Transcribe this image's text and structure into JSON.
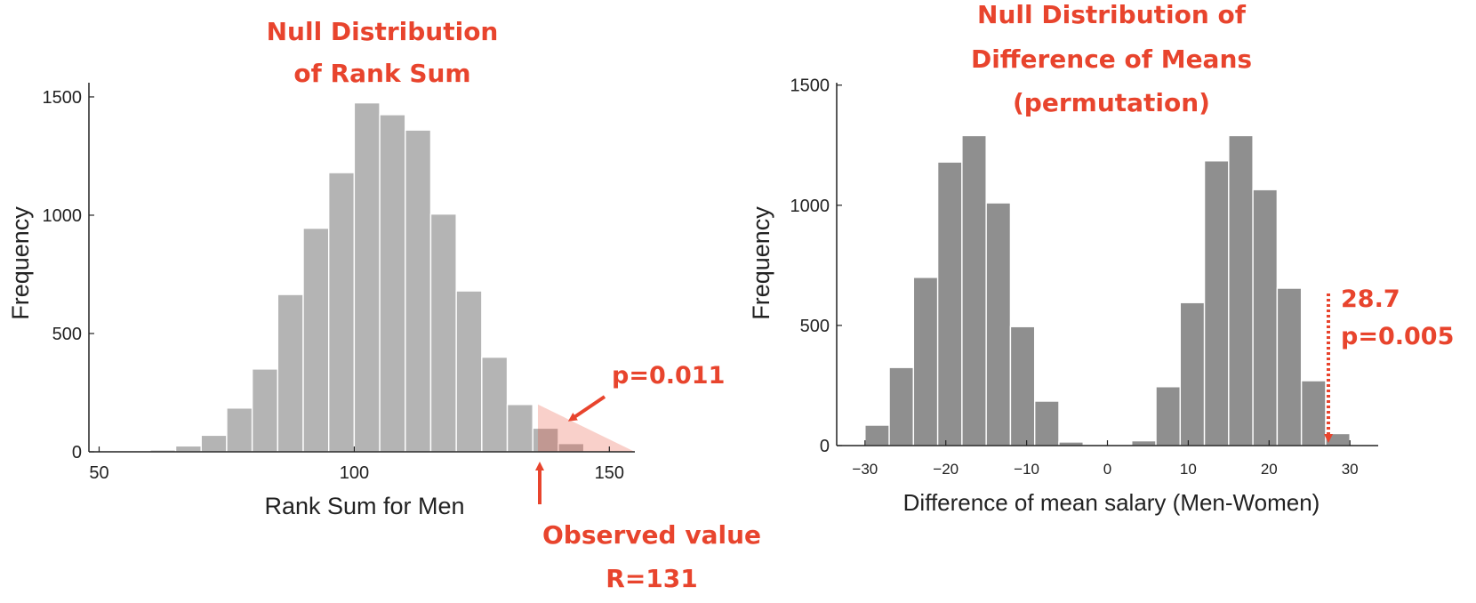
{
  "accent_color": "#e8442d",
  "chart_data": [
    {
      "type": "bar",
      "title_lines": [
        "Null Distribution",
        "of Rank Sum"
      ],
      "xlabel": "Rank Sum for Men",
      "ylabel": "Frequency",
      "xlim": [
        48,
        155
      ],
      "ylim": [
        0,
        1560
      ],
      "xticks": [
        50,
        100,
        150
      ],
      "yticks": [
        0,
        500,
        1000,
        1500
      ],
      "bin_width": 5,
      "bar_color": "#b4b4b4",
      "bins": [
        {
          "x": 57.5,
          "value": 3
        },
        {
          "x": 62.5,
          "value": 8
        },
        {
          "x": 67.5,
          "value": 25
        },
        {
          "x": 72.5,
          "value": 70
        },
        {
          "x": 77.5,
          "value": 185
        },
        {
          "x": 82.5,
          "value": 350
        },
        {
          "x": 87.5,
          "value": 665
        },
        {
          "x": 92.5,
          "value": 945
        },
        {
          "x": 97.5,
          "value": 1180
        },
        {
          "x": 102.5,
          "value": 1475
        },
        {
          "x": 107.5,
          "value": 1425
        },
        {
          "x": 112.5,
          "value": 1360
        },
        {
          "x": 117.5,
          "value": 1005
        },
        {
          "x": 122.5,
          "value": 680
        },
        {
          "x": 127.5,
          "value": 400
        },
        {
          "x": 132.5,
          "value": 200
        },
        {
          "x": 137.5,
          "value": 100
        },
        {
          "x": 142.5,
          "value": 35
        }
      ],
      "annotations": {
        "p_value": "p=0.011",
        "observed_label": "Observed value",
        "observed_value_text": "R=131",
        "observed_x": 136
      }
    },
    {
      "type": "bar",
      "title_lines": [
        "Null Distribution of",
        "Difference of Means",
        "(permutation)"
      ],
      "xlabel": "Difference of mean salary (Men-Women)",
      "ylabel": "Frequency",
      "xlim": [
        -33.5,
        33.5
      ],
      "ylim": [
        0,
        1510
      ],
      "xticks": [
        -30,
        -20,
        -10,
        0,
        10,
        20,
        30
      ],
      "xtick_labels": [
        "−30",
        "−20",
        "−10",
        "0",
        "10",
        "20",
        "30"
      ],
      "yticks": [
        0,
        500,
        1000,
        1500
      ],
      "bin_width": 3,
      "bar_color": "#8f8f8f",
      "bins": [
        {
          "x": -28.5,
          "value": 85
        },
        {
          "x": -25.5,
          "value": 325
        },
        {
          "x": -22.5,
          "value": 700
        },
        {
          "x": -19.5,
          "value": 1180
        },
        {
          "x": -16.5,
          "value": 1290
        },
        {
          "x": -13.5,
          "value": 1010
        },
        {
          "x": -10.5,
          "value": 495
        },
        {
          "x": -7.5,
          "value": 185
        },
        {
          "x": -4.5,
          "value": 15
        },
        {
          "x": 4.5,
          "value": 20
        },
        {
          "x": 7.5,
          "value": 245
        },
        {
          "x": 10.5,
          "value": 595
        },
        {
          "x": 13.5,
          "value": 1185
        },
        {
          "x": 16.5,
          "value": 1290
        },
        {
          "x": 19.5,
          "value": 1065
        },
        {
          "x": 22.5,
          "value": 655
        },
        {
          "x": 25.5,
          "value": 270
        },
        {
          "x": 28.5,
          "value": 50
        }
      ],
      "annotations": {
        "observed_value_text": "28.7",
        "p_value": "p=0.005",
        "observed_x": 27.5
      }
    }
  ]
}
